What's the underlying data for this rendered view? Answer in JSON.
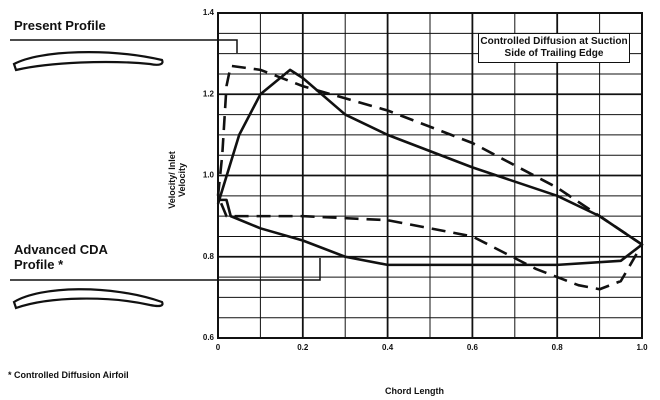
{
  "chart_data": {
    "type": "line",
    "x_label": "Chord Length",
    "y_label": "Velocity/ Inlet Velocity",
    "annotation": "Controlled Diffusion at Suction Side of Trailing Edge",
    "footnote": "* Controlled Diffusion Airfoil",
    "xlim": [
      0,
      1
    ],
    "ylim": [
      0.6,
      1.4
    ],
    "xticks": [
      0,
      0.2,
      0.4,
      0.6,
      0.8,
      {
        "value": 1,
        "label": "1.0"
      }
    ],
    "yticks": [
      0.6,
      0.8,
      {
        "value": 1,
        "label": "1.0"
      },
      1.2,
      1.4
    ],
    "grid": true,
    "minor_grid": true,
    "series": [
      {
        "name": "Present Profile",
        "color": "#111111",
        "dashed": true,
        "x": [
          0,
          0.01,
          0.02,
          0.03,
          0.1,
          0.2,
          0.4,
          0.6,
          0.8,
          0.9,
          1.0,
          0.95,
          0.9,
          0.85,
          0.75,
          0.6,
          0.4,
          0.2,
          0.02,
          0
        ],
        "values": [
          0.95,
          1.05,
          1.22,
          1.27,
          1.26,
          1.22,
          1.16,
          1.08,
          0.97,
          0.9,
          0.83,
          0.74,
          0.72,
          0.73,
          0.77,
          0.85,
          0.89,
          0.9,
          0.9,
          0.95
        ]
      },
      {
        "name": "Advanced CDA Profile *",
        "color": "#111111",
        "dashed": false,
        "x": [
          0,
          0.05,
          0.1,
          0.17,
          0.2,
          0.3,
          0.4,
          0.6,
          0.8,
          0.9,
          1.0,
          0.95,
          0.8,
          0.6,
          0.4,
          0.3,
          0.2,
          0.1,
          0.03,
          0.02,
          0
        ],
        "values": [
          0.93,
          1.1,
          1.2,
          1.26,
          1.24,
          1.15,
          1.1,
          1.02,
          0.95,
          0.9,
          0.83,
          0.79,
          0.78,
          0.78,
          0.78,
          0.8,
          0.84,
          0.87,
          0.9,
          0.94,
          0.94
        ]
      }
    ]
  }
}
